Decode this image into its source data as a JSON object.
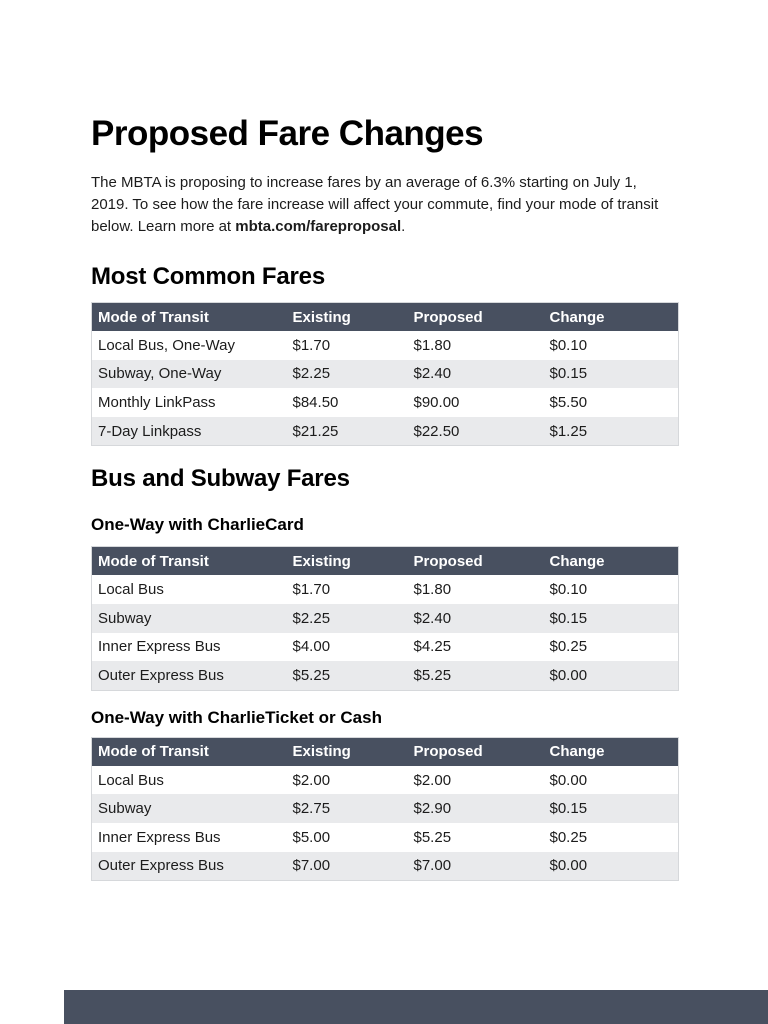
{
  "document": {
    "title": "Proposed Fare Changes",
    "intro_before": "The MBTA is proposing to increase fares by an average of 6.3% starting on July 1, 2019. To see how the fare increase will affect your commute, find your mode of transit below. Learn more at ",
    "intro_link": "mbta.com/fareproposal",
    "intro_after": "."
  },
  "headings": {
    "most_common": "Most Common Fares",
    "bus_subway": "Bus and Subway Fares",
    "charliecard": "One-Way with CharlieCard",
    "charlieticket": "One-Way with CharlieTicket or Cash"
  },
  "tables": [
    {
      "name": "most-common-fares",
      "columns": [
        "Mode of Transit",
        "Existing",
        "Proposed",
        "Change"
      ],
      "rows": [
        [
          "Local Bus, One-Way",
          "$1.70",
          "$1.80",
          "$0.10"
        ],
        [
          "Subway, One-Way",
          "$2.25",
          "$2.40",
          "$0.15"
        ],
        [
          "Monthly LinkPass",
          "$84.50",
          "$90.00",
          "$5.50"
        ],
        [
          "7-Day Linkpass",
          "$21.25",
          "$22.50",
          "$1.25"
        ]
      ]
    },
    {
      "name": "one-way-charliecard",
      "columns": [
        "Mode of Transit",
        "Existing",
        "Proposed",
        "Change"
      ],
      "rows": [
        [
          "Local Bus",
          "$1.70",
          "$1.80",
          "$0.10"
        ],
        [
          "Subway",
          "$2.25",
          "$2.40",
          "$0.15"
        ],
        [
          "Inner Express Bus",
          "$4.00",
          "$4.25",
          "$0.25"
        ],
        [
          "Outer Express Bus",
          "$5.25",
          "$5.25",
          "$0.00"
        ]
      ]
    },
    {
      "name": "one-way-charlieticket-or-cash",
      "columns": [
        "Mode of Transit",
        "Existing",
        "Proposed",
        "Change"
      ],
      "rows": [
        [
          "Local Bus",
          "$2.00",
          "$2.00",
          "$0.00"
        ],
        [
          "Subway",
          "$2.75",
          "$2.90",
          "$0.15"
        ],
        [
          "Inner Express Bus",
          "$5.00",
          "$5.25",
          "$0.25"
        ],
        [
          "Outer Express Bus",
          "$7.00",
          "$7.00",
          "$0.00"
        ]
      ]
    }
  ],
  "colors": {
    "table_header_bg": "#485060",
    "table_header_text": "#ffffff",
    "row_alt_bg": "#e9eaec",
    "table_border": "#d6d8db"
  }
}
